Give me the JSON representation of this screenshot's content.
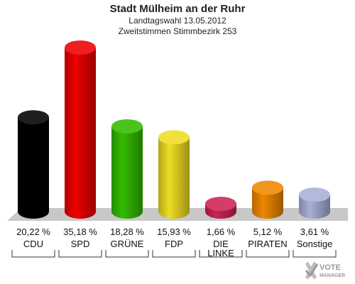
{
  "header": {
    "title": "Stadt Mülheim an der Ruhr",
    "subtitle1": "Landtagswahl 13.05.2012",
    "subtitle2": "Zweitstimmen Stimmbezirk 253"
  },
  "chart_data": {
    "type": "bar",
    "title": "Stadt Mülheim an der Ruhr",
    "subtitle": "Landtagswahl 13.05.2012 — Zweitstimmen Stimmbezirk 253",
    "categories": [
      "CDU",
      "SPD",
      "GRÜNE",
      "FDP",
      "DIE LINKE",
      "PIRATEN",
      "Sonstige"
    ],
    "category_lines": [
      [
        "CDU"
      ],
      [
        "SPD"
      ],
      [
        "GRÜNE"
      ],
      [
        "FDP"
      ],
      [
        "DIE",
        "LINKE"
      ],
      [
        "PIRATEN"
      ],
      [
        "Sonstige"
      ]
    ],
    "values": [
      20.22,
      35.18,
      18.28,
      15.93,
      1.66,
      5.12,
      3.61
    ],
    "value_labels": [
      "20,22 %",
      "35,18 %",
      "18,28 %",
      "15,93 %",
      "1,66 %",
      "5,12 %",
      "3,61 %"
    ],
    "colors": [
      "#000000",
      "#ee0000",
      "#33bb00",
      "#eedd22",
      "#cc2255",
      "#ee8800",
      "#a7b0d8"
    ],
    "ylim": [
      0,
      35.18
    ],
    "grid": false,
    "legend": "none"
  },
  "logo": {
    "text_top": "VOTE",
    "text_bottom": "MANAGER"
  }
}
